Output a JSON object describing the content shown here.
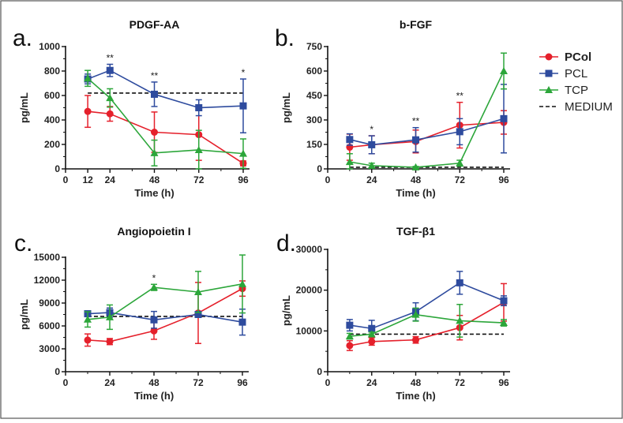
{
  "chart_data": [
    {
      "panel": "a.",
      "type": "line",
      "title": "PDGF-AA",
      "xlabel": "Time (h)",
      "ylabel": "pg/mL",
      "x": [
        12,
        24,
        48,
        72,
        96
      ],
      "xticks": [
        0,
        12,
        24,
        48,
        72,
        96
      ],
      "ylim": [
        0,
        1000
      ],
      "yticks": [
        0,
        200,
        400,
        600,
        800,
        1000
      ],
      "medium": 620,
      "series": [
        {
          "name": "PCol",
          "values": [
            470,
            450,
            300,
            280,
            45
          ],
          "errors": [
            130,
            60,
            165,
            210,
            20
          ]
        },
        {
          "name": "PCL",
          "values": [
            735,
            805,
            610,
            500,
            515
          ],
          "errors": [
            40,
            50,
            100,
            65,
            220
          ]
        },
        {
          "name": "TCP",
          "values": [
            740,
            580,
            130,
            155,
            125
          ],
          "errors": [
            65,
            75,
            105,
            160,
            120
          ]
        }
      ],
      "annotations": [
        {
          "x": 24,
          "text": "**"
        },
        {
          "x": 48,
          "text": "**"
        },
        {
          "x": 96,
          "text": "*"
        }
      ]
    },
    {
      "panel": "b.",
      "type": "line",
      "title": "b-FGF",
      "xlabel": "Time (h)",
      "ylabel": "pg/mL",
      "x": [
        12,
        24,
        48,
        72,
        96
      ],
      "xticks": [
        0,
        24,
        48,
        72,
        96
      ],
      "ylim": [
        0,
        750
      ],
      "yticks": [
        0,
        150,
        300,
        450,
        600,
        750
      ],
      "medium": 10,
      "series": [
        {
          "name": "PCol",
          "values": [
            133,
            148,
            168,
            268,
            285
          ],
          "errors": [
            80,
            55,
            70,
            140,
            72
          ]
        },
        {
          "name": "PCL",
          "values": [
            180,
            148,
            178,
            228,
            308
          ],
          "errors": [
            35,
            55,
            75,
            80,
            210
          ]
        },
        {
          "name": "TCP",
          "values": [
            43,
            20,
            10,
            35,
            600
          ],
          "errors": [
            50,
            15,
            5,
            18,
            110
          ]
        }
      ],
      "annotations": [
        {
          "x": 24,
          "text": "*"
        },
        {
          "x": 48,
          "text": "**"
        },
        {
          "x": 72,
          "text": "**"
        }
      ]
    },
    {
      "panel": "c.",
      "type": "line",
      "title": "Angiopoietin I",
      "xlabel": "Time (h)",
      "ylabel": "pg/mL",
      "x": [
        12,
        24,
        48,
        72,
        96
      ],
      "xticks": [
        0,
        24,
        48,
        72,
        96
      ],
      "ylim": [
        0,
        15000
      ],
      "yticks": [
        0,
        3000,
        6000,
        9000,
        12000,
        15000
      ],
      "medium": 7250,
      "series": [
        {
          "name": "PCol",
          "values": [
            4150,
            3950,
            5350,
            7700,
            10900
          ],
          "errors": [
            800,
            400,
            1100,
            4000,
            1000
          ]
        },
        {
          "name": "PCL",
          "values": [
            7600,
            7750,
            6800,
            7500,
            6500
          ],
          "errors": [
            200,
            600,
            1100,
            300,
            1700
          ]
        },
        {
          "name": "TCP",
          "values": [
            6850,
            7150,
            11050,
            10450,
            11500
          ],
          "errors": [
            1000,
            1600,
            400,
            2700,
            3800
          ]
        }
      ],
      "annotations": [
        {
          "x": 48,
          "text": "*"
        }
      ]
    },
    {
      "panel": "d.",
      "type": "line",
      "title": "TGF-β1",
      "xlabel": "Time (h)",
      "ylabel": "pg/mL",
      "x": [
        12,
        24,
        48,
        72,
        96
      ],
      "xticks": [
        0,
        24,
        48,
        72,
        96
      ],
      "ylim": [
        0,
        30000
      ],
      "yticks": [
        0,
        10000,
        20000,
        30000
      ],
      "medium": 9200,
      "series": [
        {
          "name": "PCol",
          "values": [
            6400,
            7400,
            7800,
            10800,
            17000
          ],
          "errors": [
            1200,
            900,
            800,
            3000,
            4600
          ]
        },
        {
          "name": "PCL",
          "values": [
            11400,
            10600,
            14700,
            21800,
            17400
          ],
          "errors": [
            1400,
            2000,
            2200,
            2800,
            1200
          ]
        },
        {
          "name": "TCP",
          "values": [
            8700,
            9200,
            14000,
            12500,
            12000
          ],
          "errors": [
            700,
            500,
            1600,
            4000,
            800
          ]
        }
      ],
      "annotations": []
    }
  ],
  "legend": {
    "placement": "right",
    "items": [
      {
        "name": "PCol",
        "marker": "circle",
        "color": "#e5202b"
      },
      {
        "name": "PCL",
        "marker": "square",
        "color": "#2e4b9e"
      },
      {
        "name": "TCP",
        "marker": "triangle",
        "color": "#2ca63a"
      },
      {
        "name": "MEDIUM",
        "marker": "dashed-line",
        "color": "#111111"
      }
    ]
  },
  "colors": {
    "PCol": "#e5202b",
    "PCL": "#2e4b9e",
    "TCP": "#2ca63a",
    "MEDIUM": "#111111"
  }
}
